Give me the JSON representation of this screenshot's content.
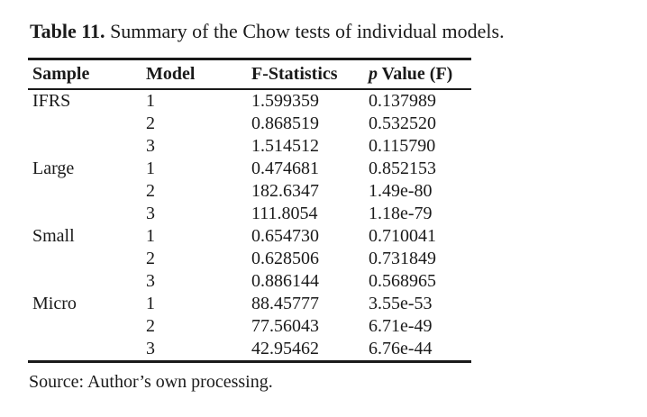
{
  "caption": {
    "label": "Table 11.",
    "text": "Summary of the Chow tests of individual models."
  },
  "table": {
    "headers": {
      "sample": "Sample",
      "model": "Model",
      "f_statistics": "F-Statistics",
      "p_value_italic": "p",
      "p_value_rest": "Value (F)"
    },
    "rows": [
      {
        "sample": "IFRS",
        "model": "1",
        "f": "1.599359",
        "p": "0.137989"
      },
      {
        "sample": "",
        "model": "2",
        "f": "0.868519",
        "p": "0.532520"
      },
      {
        "sample": "",
        "model": "3",
        "f": "1.514512",
        "p": "0.115790"
      },
      {
        "sample": "Large",
        "model": "1",
        "f": "0.474681",
        "p": "0.852153"
      },
      {
        "sample": "",
        "model": "2",
        "f": "182.6347",
        "p": "1.49e-80"
      },
      {
        "sample": "",
        "model": "3",
        "f": "111.8054",
        "p": "1.18e-79"
      },
      {
        "sample": "Small",
        "model": "1",
        "f": "0.654730",
        "p": "0.710041"
      },
      {
        "sample": "",
        "model": "2",
        "f": "0.628506",
        "p": "0.731849"
      },
      {
        "sample": "",
        "model": "3",
        "f": "0.886144",
        "p": "0.568965"
      },
      {
        "sample": "Micro",
        "model": "1",
        "f": "88.45777",
        "p": "3.55e-53"
      },
      {
        "sample": "",
        "model": "2",
        "f": "77.56043",
        "p": "6.71e-49"
      },
      {
        "sample": "",
        "model": "3",
        "f": "42.95462",
        "p": "6.76e-44"
      }
    ]
  },
  "source_note": "Source: Author’s own processing.",
  "colors": {
    "text": "#1a1a1a",
    "background": "#ffffff"
  }
}
